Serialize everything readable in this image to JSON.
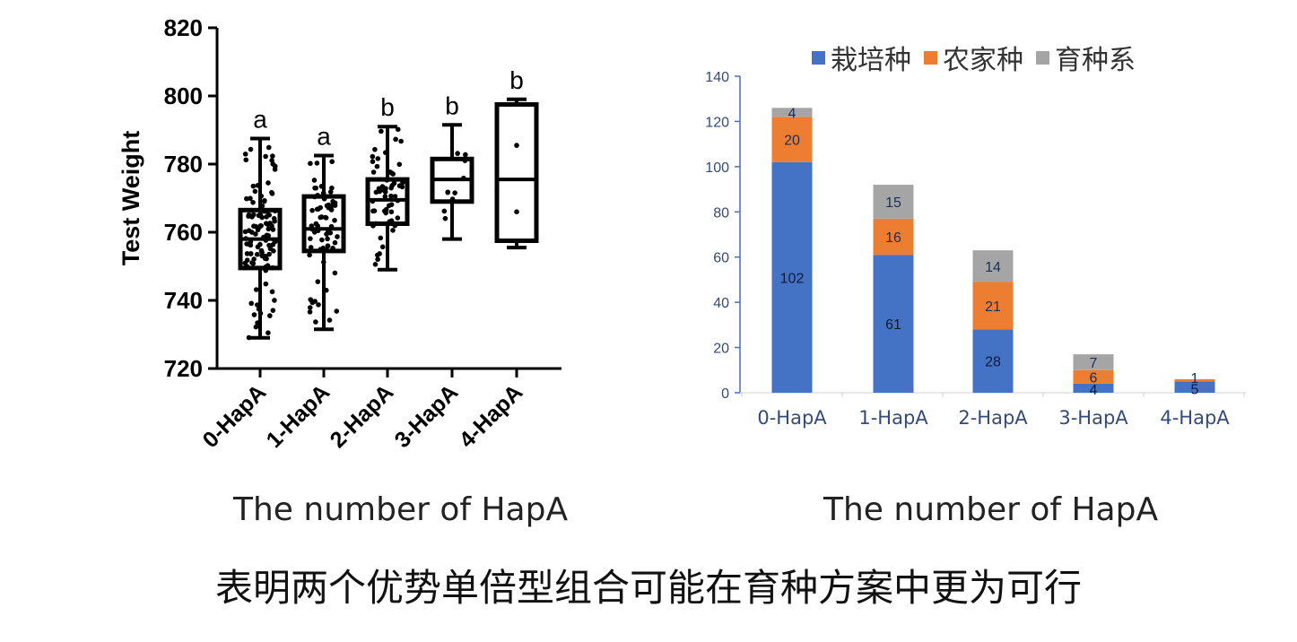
{
  "chart_data": [
    {
      "type": "box",
      "ylabel": "Test Weight",
      "xlabel": "The number of HapA",
      "ylim": [
        720,
        820
      ],
      "yticks": [
        720,
        740,
        760,
        780,
        800,
        820
      ],
      "categories": [
        "0-HapA",
        "1-HapA",
        "2-HapA",
        "3-HapA",
        "4-HapA"
      ],
      "boxes": [
        {
          "min": 729,
          "q1": 749.5,
          "median": 758,
          "q3": 766.5,
          "max": 787.5,
          "letter": "a"
        },
        {
          "min": 731.5,
          "q1": 754.5,
          "median": 761,
          "q3": 770.5,
          "max": 782.5,
          "letter": "a"
        },
        {
          "min": 749,
          "q1": 762.5,
          "median": 769.5,
          "q3": 775.5,
          "max": 791,
          "letter": "b"
        },
        {
          "min": 758,
          "q1": 769,
          "median": 775.5,
          "q3": 781.5,
          "max": 791.5,
          "letter": "b"
        },
        {
          "min": 755.5,
          "q1": 757.5,
          "median": 775.5,
          "q3": 797.5,
          "max": 799,
          "letter": "b"
        }
      ]
    },
    {
      "type": "bar",
      "stacked": true,
      "xlabel": "The number of HapA",
      "ylim": [
        0,
        140
      ],
      "yticks": [
        0,
        20,
        40,
        60,
        80,
        100,
        120,
        140
      ],
      "categories": [
        "0-HapA",
        "1-HapA",
        "2-HapA",
        "3-HapA",
        "4-HapA"
      ],
      "series": [
        {
          "name": "栽培种",
          "color": "#4472c4",
          "values": [
            102,
            61,
            28,
            4,
            5
          ]
        },
        {
          "name": "农家种",
          "color": "#ed7d31",
          "values": [
            20,
            16,
            21,
            6,
            1
          ]
        },
        {
          "name": "育种系",
          "color": "#a5a5a5",
          "values": [
            4,
            15,
            14,
            7,
            0
          ]
        }
      ],
      "legend": "top"
    }
  ],
  "text": {
    "left_xtitle": "The number of HapA",
    "right_xtitle": "The number of HapA",
    "caption": "表明两个优势单倍型组合可能在育种方案中更为可行",
    "legend": [
      "栽培种",
      "农家种",
      "育种系"
    ]
  }
}
